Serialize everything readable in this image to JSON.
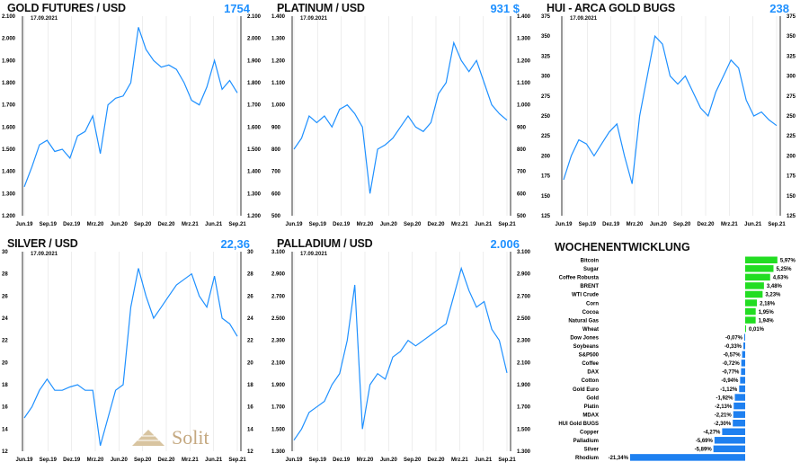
{
  "xticks": [
    "Jun.19",
    "Sep.19",
    "Dez.19",
    "Mrz.20",
    "Jun.20",
    "Sep.20",
    "Dez.20",
    "Mrz.21",
    "Jun.21",
    "Sep.21"
  ],
  "date": "17.09.2021",
  "logo": "Solit",
  "chart_data": [
    {
      "type": "line",
      "title": "GOLD FUTURES / USD",
      "value": "1754",
      "ylim": [
        1200,
        2100
      ],
      "yticks": [
        "1.200",
        "1.300",
        "1.400",
        "1.500",
        "1.600",
        "1.700",
        "1.800",
        "1.900",
        "2.000",
        "2.100"
      ],
      "y": [
        1330,
        1420,
        1520,
        1540,
        1490,
        1500,
        1460,
        1560,
        1580,
        1650,
        1480,
        1700,
        1730,
        1740,
        1800,
        2050,
        1950,
        1900,
        1870,
        1880,
        1860,
        1800,
        1720,
        1700,
        1780,
        1900,
        1770,
        1810,
        1754
      ]
    },
    {
      "type": "line",
      "title": "PLATINUM / USD",
      "value": "931 $",
      "ylim": [
        500,
        1400
      ],
      "yticks": [
        "500",
        "600",
        "700",
        "800",
        "900",
        "1.000",
        "1.100",
        "1.200",
        "1.300",
        "1.400"
      ],
      "y": [
        800,
        850,
        950,
        920,
        950,
        900,
        980,
        1000,
        960,
        900,
        600,
        800,
        820,
        850,
        900,
        950,
        900,
        880,
        920,
        1050,
        1100,
        1280,
        1200,
        1150,
        1200,
        1100,
        1000,
        960,
        931
      ]
    },
    {
      "type": "line",
      "title": "HUI - ARCA GOLD BUGS",
      "value": "238",
      "ylim": [
        125,
        375
      ],
      "yticks": [
        "125",
        "150",
        "175",
        "200",
        "225",
        "250",
        "275",
        "300",
        "325",
        "350",
        "375"
      ],
      "y": [
        170,
        200,
        220,
        215,
        200,
        215,
        230,
        240,
        200,
        165,
        250,
        300,
        350,
        340,
        300,
        290,
        300,
        280,
        260,
        250,
        280,
        300,
        320,
        310,
        270,
        250,
        255,
        245,
        238
      ]
    },
    {
      "type": "line",
      "title": "SILVER / USD",
      "value": "22,36",
      "ylim": [
        12,
        30
      ],
      "yticks": [
        "12",
        "14",
        "16",
        "18",
        "20",
        "22",
        "24",
        "26",
        "28",
        "30"
      ],
      "y": [
        15,
        16,
        17.5,
        18.5,
        17.5,
        17.5,
        17.8,
        18,
        17.5,
        17.5,
        12.5,
        15,
        17.5,
        18,
        25,
        28.5,
        26,
        24,
        25,
        26,
        27,
        27.5,
        28,
        26,
        25,
        27.8,
        24,
        23.5,
        22.36
      ]
    },
    {
      "type": "line",
      "title": "PALLADIUM / USD",
      "value": "2.006",
      "ylim": [
        1300,
        3100
      ],
      "yticks": [
        "1.300",
        "1.500",
        "1.700",
        "1.900",
        "2.100",
        "2.300",
        "2.500",
        "2.700",
        "2.900",
        "3.100"
      ],
      "y": [
        1400,
        1500,
        1650,
        1700,
        1750,
        1900,
        2000,
        2300,
        2800,
        1500,
        1900,
        2000,
        1950,
        2150,
        2200,
        2300,
        2250,
        2300,
        2350,
        2400,
        2450,
        2700,
        2950,
        2750,
        2600,
        2650,
        2400,
        2300,
        2006
      ]
    },
    {
      "type": "bar",
      "title": "WOCHENENTWICKLUNG",
      "categories": [
        "Bitcoin",
        "Sugar",
        "Coffee Robusta",
        "BRENT",
        "WTI Crude",
        "Corn",
        "Cocoa",
        "Natural Gas",
        "Wheat",
        "Dow Jones",
        "Soybeans",
        "S&P500",
        "Coffee",
        "DAX",
        "Cotton",
        "Gold Euro",
        "Gold",
        "Platin",
        "MDAX",
        "HUI Gold BUGS",
        "Copper",
        "Palladium",
        "Silver",
        "Rhodium"
      ],
      "values": [
        5.97,
        5.25,
        4.63,
        3.48,
        3.23,
        2.18,
        1.95,
        1.94,
        0.01,
        -0.07,
        -0.33,
        -0.57,
        -0.72,
        -0.77,
        -0.94,
        -1.12,
        -1.92,
        -2.13,
        -2.21,
        -2.3,
        -4.27,
        -5.69,
        -5.89,
        -21.34
      ],
      "labels": [
        "5,97%",
        "5,25%",
        "4,63%",
        "3,48%",
        "3,23%",
        "2,18%",
        "1,95%",
        "1,94%",
        "0,01%",
        "-0,07%",
        "-0,33%",
        "-0,57%",
        "-0,72%",
        "-0,77%",
        "-0,94%",
        "-1,12%",
        "-1,92%",
        "-2,13%",
        "-2,21%",
        "-2,30%",
        "-4,27%",
        "-5,69%",
        "-5,89%",
        "-21,34%"
      ]
    }
  ],
  "colors": {
    "line": "#1e90ff",
    "pos": "#22dd22",
    "neg": "#1e80f0",
    "value": "#1e90ff"
  }
}
